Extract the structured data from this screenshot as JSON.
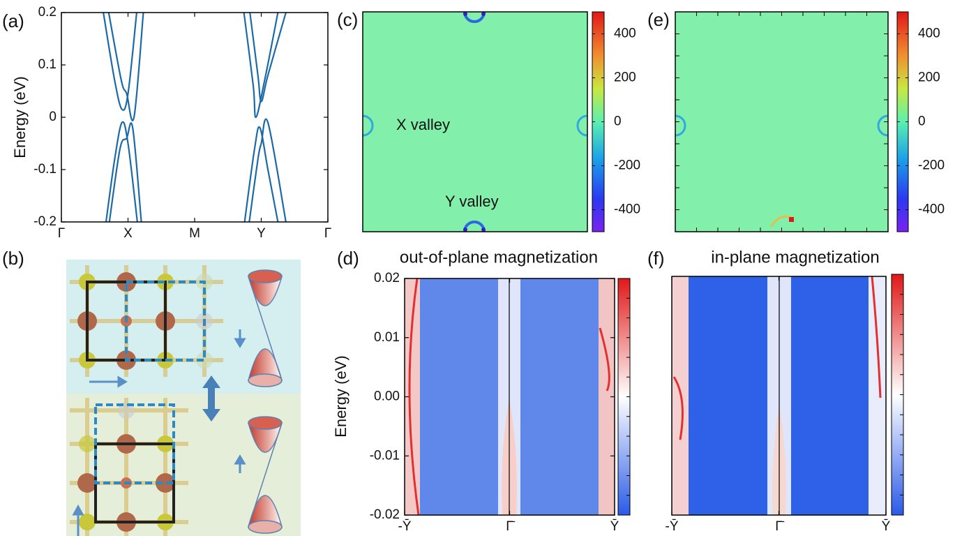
{
  "diagram": {
    "label": "(b)"
  },
  "chart_data": [
    {
      "type": "line",
      "label": "(a)",
      "ylabel": "Energy (eV)",
      "color": "#1a6aa8",
      "xlim": [
        0,
        4
      ],
      "xticks": [
        {
          "value": 0,
          "label": "Γ"
        },
        {
          "value": 1,
          "label": "X"
        },
        {
          "value": 2,
          "label": "M"
        },
        {
          "value": 3,
          "label": "Y"
        },
        {
          "value": 4,
          "label": "Γ"
        }
      ],
      "ylim": [
        -0.2,
        0.2
      ],
      "yticks": [
        0.2,
        0.1,
        0,
        -0.1,
        -0.2
      ],
      "series": [
        {
          "x": [
            0.63,
            0.8,
            0.91,
            1.0,
            1.13
          ],
          "values": [
            0.2,
            0.07,
            0.015,
            0.045,
            0.2
          ]
        },
        {
          "x": [
            0.71,
            0.9,
            0.98,
            1.09,
            1.23
          ],
          "values": [
            0.2,
            0.07,
            0.045,
            0.0,
            0.2
          ]
        },
        {
          "x": [
            0.67,
            0.8,
            0.91,
            1.0,
            1.14
          ],
          "values": [
            -0.2,
            -0.08,
            -0.01,
            -0.05,
            -0.2
          ]
        },
        {
          "x": [
            0.72,
            0.88,
            0.98,
            1.07,
            1.2
          ],
          "values": [
            -0.2,
            -0.06,
            -0.04,
            -0.02,
            -0.2
          ]
        },
        {
          "x": [
            2.74,
            2.88,
            2.92,
            3.05,
            3.25
          ],
          "values": [
            0.2,
            0.06,
            0.0,
            0.07,
            0.2
          ]
        },
        {
          "x": [
            2.83,
            2.95,
            3.0,
            3.1,
            3.37
          ],
          "values": [
            0.2,
            0.08,
            0.03,
            0.08,
            0.2
          ]
        },
        {
          "x": [
            2.75,
            2.9,
            2.98,
            3.1,
            3.25
          ],
          "values": [
            -0.2,
            -0.06,
            -0.02,
            -0.1,
            -0.2
          ]
        },
        {
          "x": [
            2.82,
            2.95,
            3.0,
            3.1,
            3.37
          ],
          "values": [
            -0.2,
            -0.08,
            -0.05,
            -0.01,
            -0.2
          ]
        }
      ]
    },
    {
      "type": "heatmap",
      "label": "(c)",
      "annotations": [
        "X valley",
        "Y valley"
      ],
      "zlim": [
        -500,
        500
      ],
      "zticks": [
        400,
        200,
        0,
        -200,
        -400
      ]
    },
    {
      "type": "heatmap",
      "label": "(e)",
      "zlim": [
        -500,
        500
      ],
      "zticks": [
        400,
        200,
        0,
        -200,
        -400
      ]
    },
    {
      "type": "heatmap",
      "label": "(d)",
      "title": "out-of-plane magnetization",
      "ylabel": "Energy (eV)",
      "ylim": [
        -0.02,
        0.02
      ],
      "yticks": [
        0.02,
        0.01,
        {
          "value": 0,
          "label": "0.00"
        },
        -0.01,
        -0.02
      ],
      "xlim": [
        -1,
        1
      ],
      "xticks": [
        {
          "value": -1,
          "label": "-Ȳ"
        },
        {
          "value": 0,
          "label": "Γ̄"
        },
        {
          "value": 1,
          "label": "Ȳ"
        }
      ]
    },
    {
      "type": "heatmap",
      "label": "(f)",
      "title": "in-plane magnetization",
      "ylim": [
        -0.02,
        0.02
      ],
      "xlim": [
        -1,
        1
      ],
      "xticks": [
        {
          "value": -1,
          "label": "-Ȳ"
        },
        {
          "value": 0,
          "label": "Γ̄"
        },
        {
          "value": 1,
          "label": "Ȳ"
        }
      ]
    }
  ]
}
